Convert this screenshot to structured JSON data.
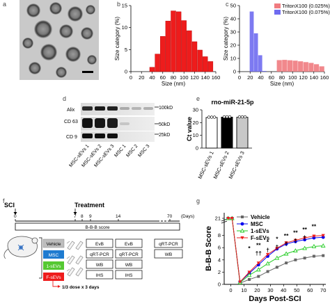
{
  "panel_labels": {
    "a": "a",
    "b": "b",
    "c": "c",
    "d": "d",
    "e": "e",
    "f": "f",
    "g": "g"
  },
  "colors": {
    "red": "#ee1c1c",
    "red_light": "#f07b80",
    "blue": "#6f6bf0",
    "vehicle": "#666666",
    "msc_blue": "#0000ee",
    "green": "#22cc22",
    "box_msc": "#1f7bd0",
    "box_green": "#55c832"
  },
  "chart_data": [
    {
      "id": "b",
      "type": "bar",
      "title": "",
      "xlabel": "Size (nm)",
      "ylabel": "Size category (%)",
      "ylim": [
        0,
        15
      ],
      "yticks": [
        0,
        5,
        10,
        15
      ],
      "x": [
        40,
        50,
        60,
        70,
        80,
        90,
        100,
        110,
        120,
        130,
        140,
        150
      ],
      "values": [
        1.0,
        4.0,
        8.0,
        11.5,
        13.8,
        13.6,
        11.6,
        9.3,
        6.8,
        4.9,
        3.4,
        2.3
      ],
      "xtick_labels": [
        "0",
        "20",
        "40",
        "60",
        "80",
        "100",
        "120",
        "140",
        "160"
      ]
    },
    {
      "id": "c",
      "type": "bar",
      "xlabel": "Size (nm)",
      "ylabel": "Size category (%)",
      "ylim": [
        0,
        50
      ],
      "yticks": [
        0,
        10,
        20,
        30,
        40,
        50
      ],
      "xtick_labels": [
        "0",
        "20",
        "40",
        "60",
        "80",
        "100",
        "120",
        "140",
        "160"
      ],
      "legend_position": "top-right",
      "series": [
        {
          "name": "TritonX100 (0.025%)",
          "x": [
            75,
            85,
            95,
            105,
            115,
            125,
            135,
            145,
            155
          ],
          "values": [
            8.7,
            8.9,
            8.6,
            8.3,
            7.8,
            7.2,
            6.6,
            5.6,
            4.0
          ]
        },
        {
          "name": "TritonX100 (0.075%)",
          "x": [
            23,
            31,
            39,
            47
          ],
          "values": [
            45.5,
            29.0,
            12.4,
            0.5
          ]
        }
      ]
    },
    {
      "id": "e",
      "type": "bar",
      "title": "rno-miR-21-5p",
      "ylabel": "Ct value",
      "ylim": [
        0,
        30
      ],
      "yticks": [
        0,
        10,
        20,
        30
      ],
      "categories": [
        "MSC-sEVs 1",
        "MSC-sEVs 2",
        "MSC-sEVs 3"
      ],
      "values": [
        24.0,
        24.3,
        24.2
      ]
    },
    {
      "id": "g",
      "type": "line",
      "xlabel": "Days Post-SCI",
      "ylabel": "B-B-B Score",
      "ylim": [
        0,
        21
      ],
      "yticks": [
        "0",
        "2",
        "4",
        "6",
        "8",
        "10",
        "21"
      ],
      "xticks": [
        0,
        10,
        20,
        30,
        40,
        50,
        60,
        70
      ],
      "legend_position": "top-left",
      "x": [
        -2,
        1,
        7,
        14,
        21,
        28,
        35,
        42,
        49,
        56,
        63,
        70
      ],
      "series": [
        {
          "name": "Vehicle",
          "values": [
            21,
            21,
            0.2,
            0.8,
            1.3,
            2.1,
            2.8,
            3.5,
            4.0,
            4.3,
            4.6,
            4.7
          ]
        },
        {
          "name": "MSC",
          "values": [
            21,
            21,
            0.4,
            1.8,
            3.2,
            4.6,
            5.8,
            6.6,
            7.0,
            7.3,
            7.6,
            7.7
          ]
        },
        {
          "name": "1-sEVs",
          "values": [
            21,
            21,
            0.3,
            1.5,
            2.4,
            3.4,
            4.3,
            5.0,
            5.5,
            5.9,
            6.2,
            6.3
          ]
        },
        {
          "name": "F-sEVs",
          "values": [
            21,
            21,
            0.4,
            2.0,
            3.5,
            4.9,
            5.9,
            6.8,
            7.2,
            7.6,
            7.9,
            8.0
          ]
        }
      ],
      "annotations_top": [
        "*",
        "**",
        "*",
        "*",
        "**",
        "**",
        "**",
        "**"
      ],
      "annotations_bottom": [
        "††",
        "†",
        "†",
        "†",
        "†",
        "†"
      ]
    }
  ],
  "panel_d": {
    "rows": [
      "Alix",
      "CD 63",
      "CD 9"
    ],
    "kd": [
      "100kD",
      "50kD",
      "25kD"
    ],
    "lanes": [
      "MSC-sEVs 1",
      "MSC-sEVs 2",
      "MSC-sEVs 3",
      "MSC 1",
      "MSC 2",
      "MSC 3"
    ]
  },
  "panel_f": {
    "sci": "SCI",
    "treatment": "Treatment",
    "timeline_ticks": [
      "0",
      "7",
      "8",
      "9",
      "14",
      "70"
    ],
    "days": "(Days)",
    "bbb": "B-B-B score",
    "groups": [
      "Vehicle",
      "MSC",
      "1-sEVs",
      "F-sEVs"
    ],
    "dose": "1/3 dose x 3 days",
    "col7": [
      "EvB",
      "qRT-PCR",
      "WB",
      "IHS"
    ],
    "col14": [
      "EvB",
      "qRT-PCR",
      "WB",
      "IHS"
    ],
    "col70": [
      "qRT-PCR",
      "WB"
    ]
  }
}
